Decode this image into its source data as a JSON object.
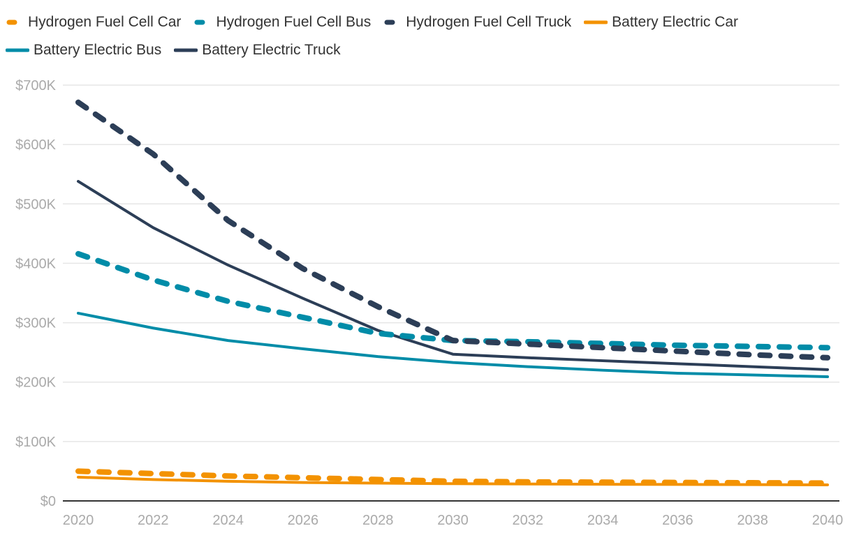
{
  "chart_data": {
    "type": "line",
    "title": "",
    "xlabel": "",
    "ylabel": "",
    "x": [
      2020,
      2022,
      2024,
      2026,
      2028,
      2030,
      2032,
      2034,
      2036,
      2038,
      2040
    ],
    "xticks": [
      "2020",
      "2022",
      "2024",
      "2026",
      "2028",
      "2030",
      "2032",
      "2034",
      "2036",
      "2038",
      "2040"
    ],
    "yticks": [
      "$0",
      "$100K",
      "$200K",
      "$300K",
      "$400K",
      "$500K",
      "$600K",
      "$700K"
    ],
    "ylim": [
      0,
      700000
    ],
    "grid": true,
    "legend_position": "top",
    "series": [
      {
        "name": "Hydrogen Fuel Cell Car",
        "color": "#f39200",
        "dash": true,
        "values": [
          50000,
          46000,
          42000,
          39000,
          36000,
          33000,
          32000,
          31500,
          31000,
          30500,
          30000
        ]
      },
      {
        "name": "Hydrogen Fuel Cell Bus",
        "color": "#008ca8",
        "dash": true,
        "values": [
          416000,
          372000,
          336000,
          309000,
          282000,
          270000,
          268000,
          265000,
          262000,
          260000,
          258000
        ]
      },
      {
        "name": "Hydrogen Fuel Cell Truck",
        "color": "#2c3e57",
        "dash": true,
        "values": [
          671000,
          584000,
          472000,
          391000,
          327000,
          270000,
          264000,
          258000,
          252000,
          246000,
          241000
        ]
      },
      {
        "name": "Battery Electric Car",
        "color": "#f39200",
        "dash": false,
        "values": [
          40000,
          36000,
          33000,
          31000,
          30000,
          29000,
          28500,
          28000,
          27800,
          27500,
          27000
        ]
      },
      {
        "name": "Battery Electric Bus",
        "color": "#008ca8",
        "dash": false,
        "values": [
          316000,
          291000,
          270000,
          256000,
          243000,
          233000,
          226000,
          220000,
          215000,
          212000,
          209000
        ]
      },
      {
        "name": "Battery Electric Truck",
        "color": "#2c3e57",
        "dash": false,
        "values": [
          538000,
          460000,
          397000,
          341000,
          287000,
          247000,
          241000,
          236000,
          231000,
          226000,
          221000
        ]
      }
    ]
  }
}
